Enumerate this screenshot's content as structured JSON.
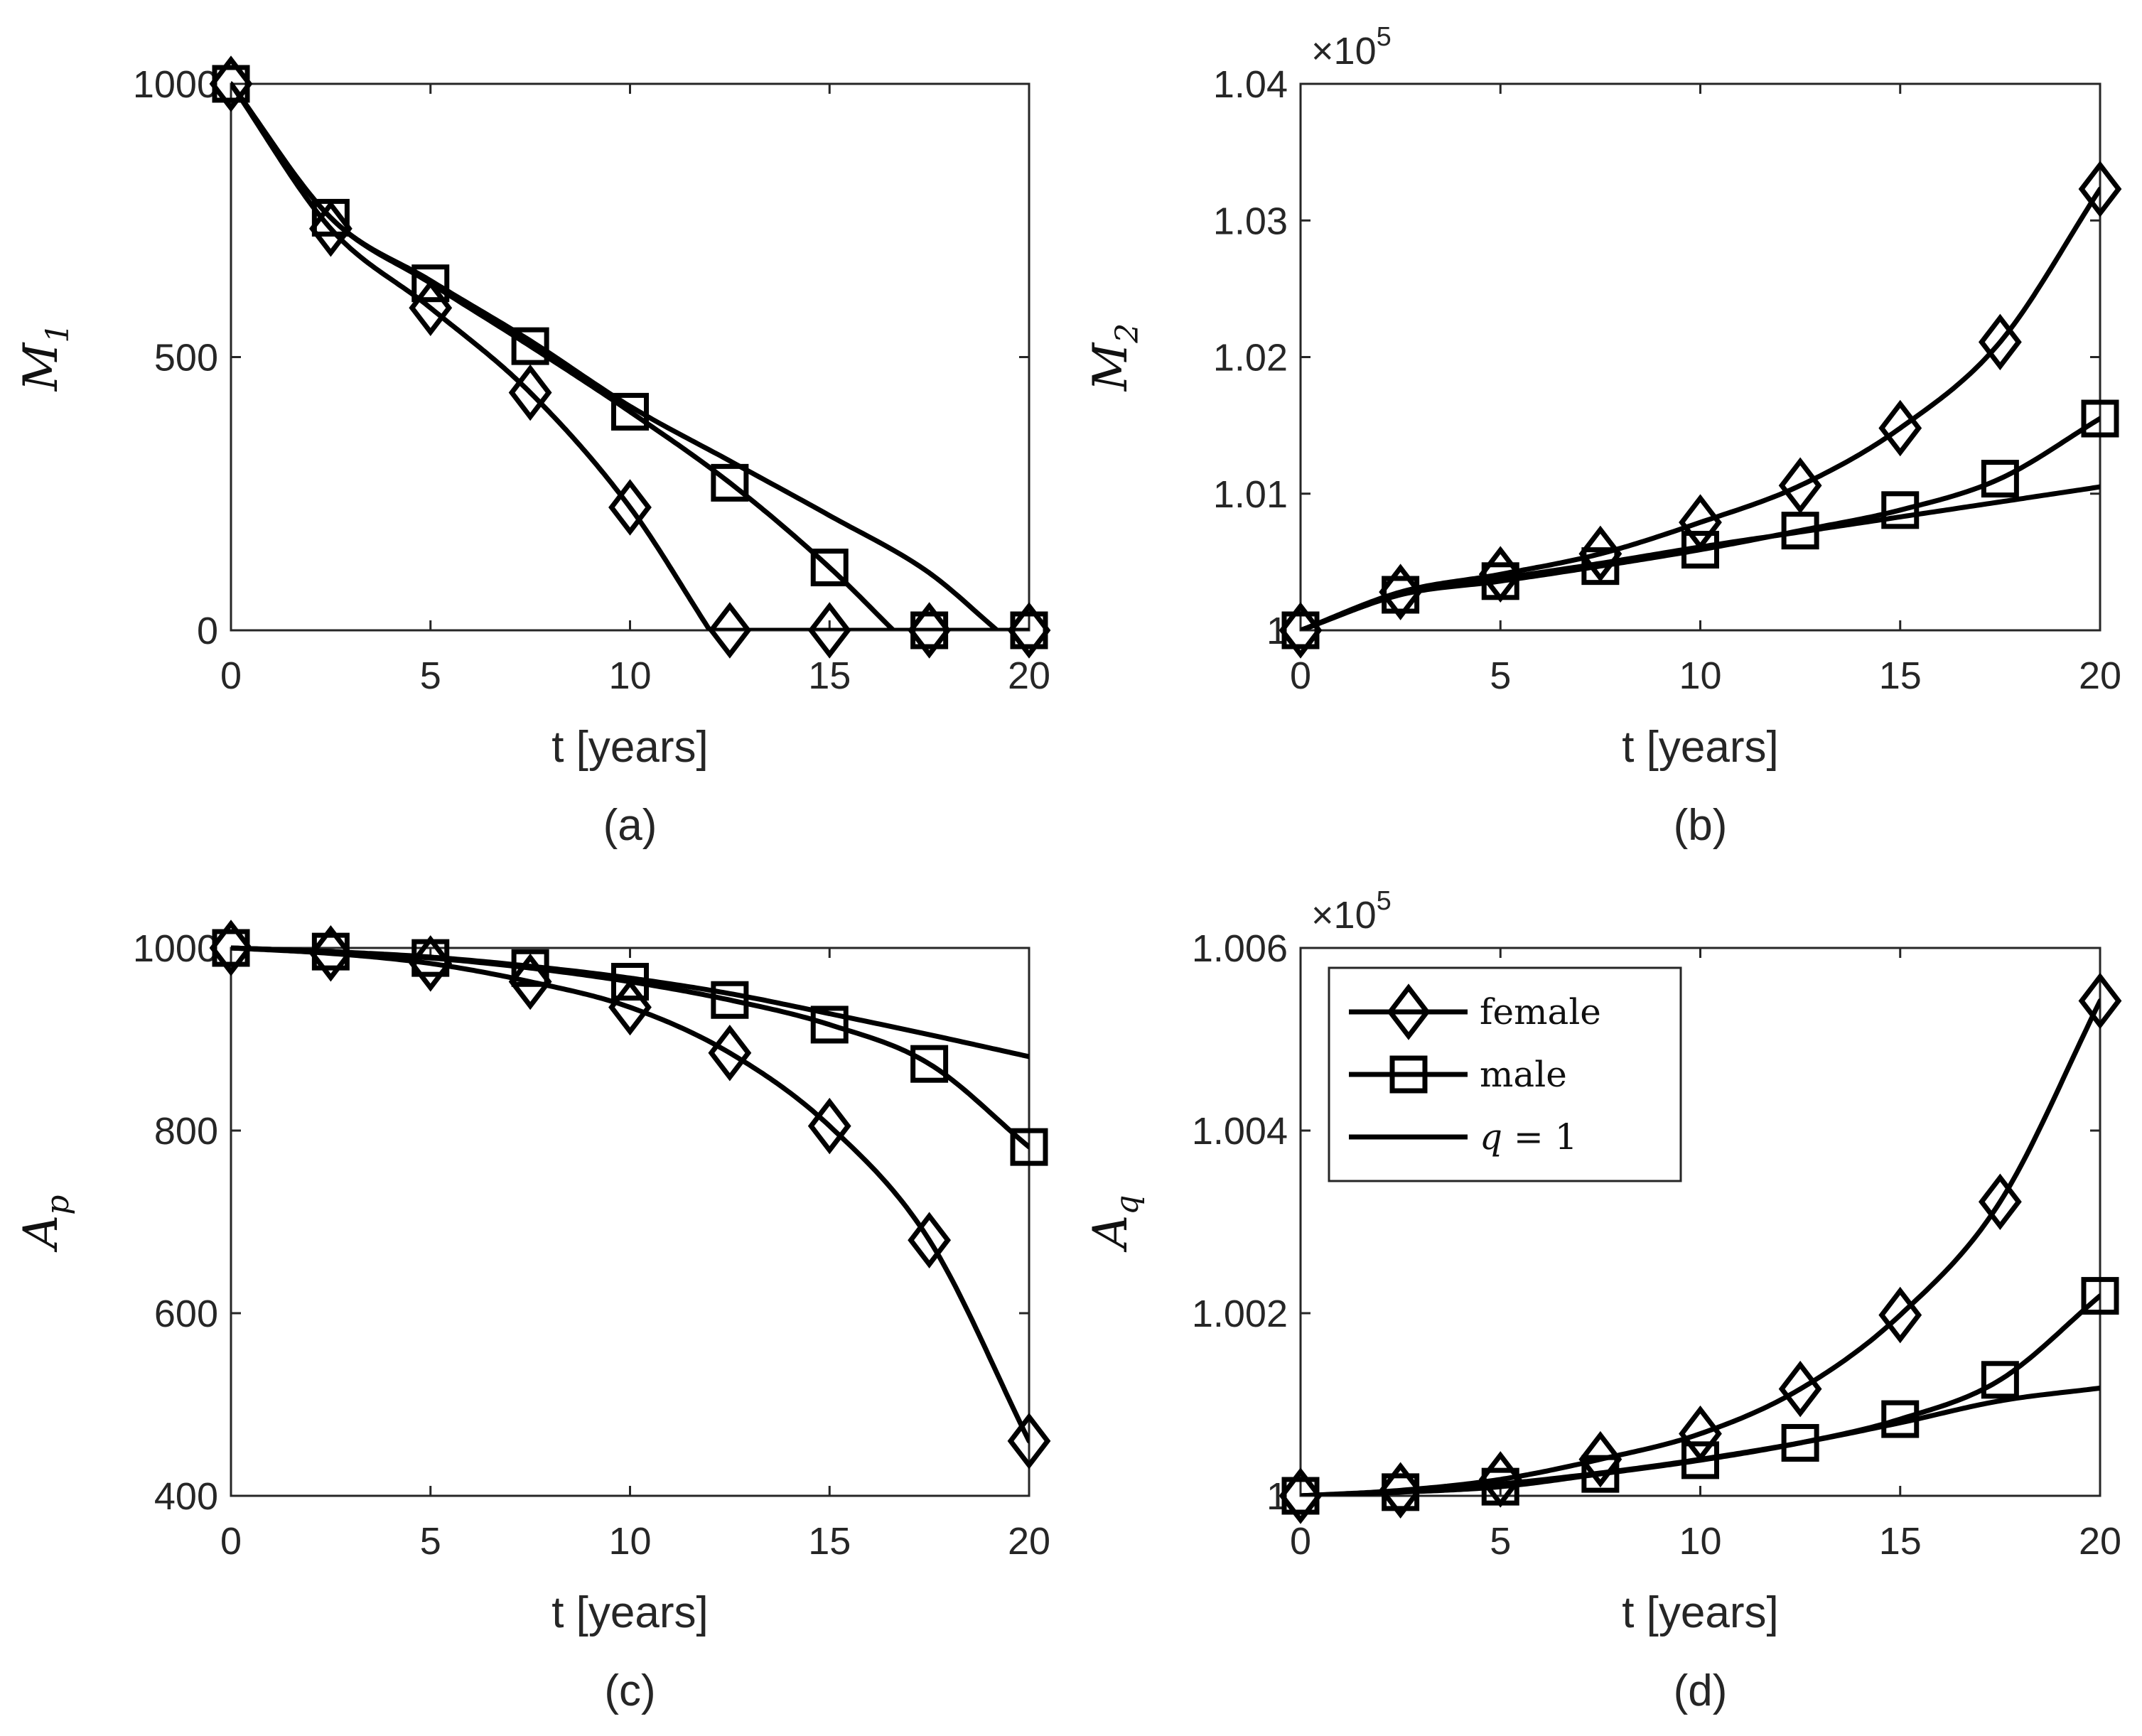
{
  "chart_data": [
    {
      "id": "a",
      "type": "line",
      "panel_label": "(a)",
      "xlabel": "t [years]",
      "ylabel": "M",
      "ylabel_sub": "1",
      "xlim": [
        0,
        20
      ],
      "ylim": [
        0,
        1000
      ],
      "xticks": [
        0,
        5,
        10,
        15,
        20
      ],
      "yticks": [
        0,
        500,
        1000
      ],
      "ytick_labels": [
        "0",
        "500",
        "1000"
      ],
      "exponent": null,
      "x": [
        0,
        2.5,
        5,
        7.5,
        10,
        12.5,
        15,
        17.5,
        20
      ],
      "series": [
        {
          "name": "female",
          "marker": "diamond",
          "values": [
            1000,
            735,
            590,
            435,
            225,
            0,
            0,
            0,
            0
          ],
          "zero_at": 12.0
        },
        {
          "name": "male",
          "marker": "square",
          "values": [
            1000,
            755,
            635,
            520,
            400,
            270,
            115,
            0,
            0
          ],
          "zero_at": 16.6
        },
        {
          "name": "q = 1",
          "marker": "none",
          "values": [
            1000,
            755,
            640,
            530,
            410,
            310,
            210,
            105,
            0
          ],
          "zero_at": 19.2
        }
      ]
    },
    {
      "id": "b",
      "type": "line",
      "panel_label": "(b)",
      "xlabel": "t [years]",
      "ylabel": "M",
      "ylabel_sub": "2",
      "xlim": [
        0,
        20
      ],
      "ylim": [
        1.0,
        1.04
      ],
      "xticks": [
        0,
        5,
        10,
        15,
        20
      ],
      "yticks": [
        1.0,
        1.01,
        1.02,
        1.03,
        1.04
      ],
      "ytick_labels": [
        "1",
        "1.01",
        "1.02",
        "1.03",
        "1.04"
      ],
      "exponent": {
        "base": "×10",
        "power": "5"
      },
      "x": [
        0,
        2.5,
        5,
        7.5,
        10,
        12.5,
        15,
        17.5,
        20
      ],
      "series": [
        {
          "name": "female",
          "marker": "diamond",
          "values": [
            1.0,
            1.0028,
            1.0041,
            1.0056,
            1.0079,
            1.0106,
            1.0148,
            1.0211,
            1.0323
          ]
        },
        {
          "name": "male",
          "marker": "square",
          "values": [
            1.0,
            1.0026,
            1.0036,
            1.0047,
            1.0059,
            1.0073,
            1.0088,
            1.0111,
            1.0155
          ]
        },
        {
          "name": "q = 1",
          "marker": "none",
          "values": [
            1.0,
            1.0027,
            1.0038,
            1.0049,
            1.0061,
            1.0072,
            1.0083,
            1.0094,
            1.0105
          ]
        }
      ]
    },
    {
      "id": "c",
      "type": "line",
      "panel_label": "(c)",
      "xlabel": "t [years]",
      "ylabel": "A",
      "ylabel_sub": "p",
      "xlim": [
        0,
        20
      ],
      "ylim": [
        400,
        1000
      ],
      "xticks": [
        0,
        5,
        10,
        15,
        20
      ],
      "yticks": [
        400,
        600,
        800,
        1000
      ],
      "ytick_labels": [
        "400",
        "600",
        "800",
        "1000"
      ],
      "exponent": null,
      "x": [
        0,
        2.5,
        5,
        7.5,
        10,
        12.5,
        15,
        17.5,
        20
      ],
      "series": [
        {
          "name": "female",
          "marker": "diamond",
          "values": [
            1000,
            994,
            983,
            963,
            935,
            885,
            805,
            680,
            460
          ]
        },
        {
          "name": "male",
          "marker": "square",
          "values": [
            1000,
            996,
            989,
            978,
            963,
            943,
            916,
            873,
            782
          ]
        },
        {
          "name": "q = 1",
          "marker": "none",
          "values": [
            1000,
            996,
            990,
            980,
            967,
            950,
            928,
            905,
            881
          ]
        }
      ]
    },
    {
      "id": "d",
      "type": "line",
      "panel_label": "(d)",
      "xlabel": "t [years]",
      "ylabel": "A",
      "ylabel_sub": "q",
      "xlim": [
        0,
        20
      ],
      "ylim": [
        1.0,
        1.006
      ],
      "xticks": [
        0,
        5,
        10,
        15,
        20
      ],
      "yticks": [
        1.0,
        1.002,
        1.004,
        1.006
      ],
      "ytick_labels": [
        "1",
        "1.002",
        "1.004",
        "1.006"
      ],
      "exponent": {
        "base": "×10",
        "power": "5"
      },
      "legend": {
        "position": "top-left",
        "entries": [
          "female",
          "male",
          "q = 1"
        ]
      },
      "x": [
        0,
        2.5,
        5,
        7.5,
        10,
        12.5,
        15,
        17.5,
        20
      ],
      "series": [
        {
          "name": "female",
          "marker": "diamond",
          "values": [
            1.0,
            1.00006,
            1.00018,
            1.0004,
            1.00068,
            1.00117,
            1.00198,
            1.00322,
            1.00542
          ]
        },
        {
          "name": "male",
          "marker": "square",
          "values": [
            1.0,
            1.00004,
            1.0001,
            1.00024,
            1.00039,
            1.00058,
            1.00084,
            1.00127,
            1.00219
          ]
        },
        {
          "name": "q = 1",
          "marker": "none",
          "values": [
            1.0,
            1.00005,
            1.00013,
            1.00025,
            1.0004,
            1.00058,
            1.0008,
            1.00104,
            1.00118
          ]
        }
      ]
    }
  ],
  "legend_labels": {
    "female": "female",
    "male": "male",
    "q1_var": "q",
    "q1_rest": " = 1"
  }
}
